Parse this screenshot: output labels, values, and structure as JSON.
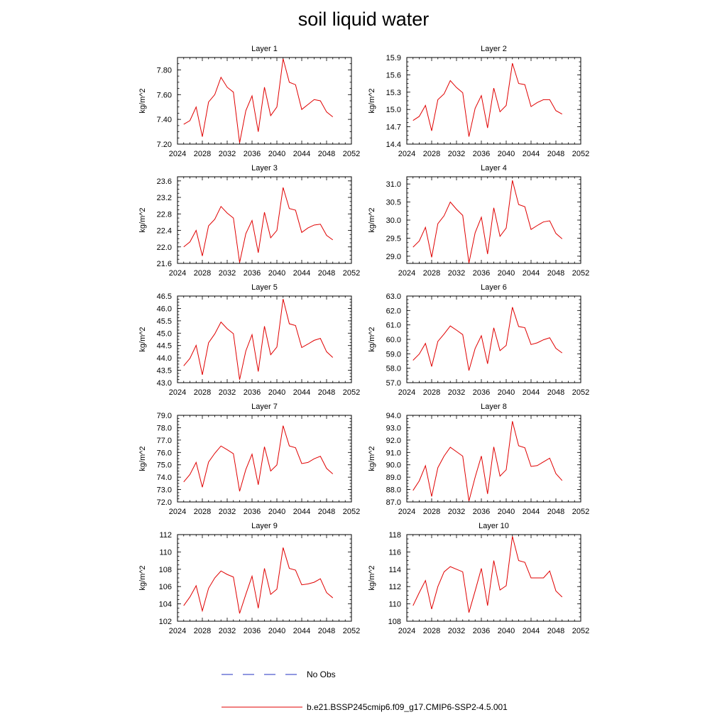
{
  "title": "soil liquid water",
  "legend": {
    "obs_label": "No Obs",
    "obs_color": "#2030c0",
    "model_label": "b.e21.BSSP245cmip6.f09_g17.CMIP6-SSP2-4.5.001",
    "model_color": "#e00000"
  },
  "chart_data": [
    {
      "type": "line",
      "title": "Layer 1",
      "ylabel": "kg/m^2",
      "xlim": [
        2024,
        2052
      ],
      "xticks": [
        2024,
        2028,
        2032,
        2036,
        2040,
        2044,
        2048,
        2052
      ],
      "ylim": [
        7.2,
        7.9
      ],
      "yticks": [
        "7.20",
        "7.40",
        "7.60",
        "7.80"
      ],
      "ytick_values": [
        7.2,
        7.4,
        7.6,
        7.8
      ],
      "x": [
        2025,
        2026,
        2027,
        2028,
        2029,
        2030,
        2031,
        2032,
        2033,
        2034,
        2035,
        2036,
        2037,
        2038,
        2039,
        2040,
        2041,
        2042,
        2043,
        2044,
        2045,
        2046,
        2047,
        2048,
        2049
      ],
      "series": [
        {
          "name": "b.e21.BSSP245cmip6.f09_g17.CMIP6-SSP2-4.5.001",
          "values": [
            7.36,
            7.39,
            7.5,
            7.26,
            7.54,
            7.6,
            7.74,
            7.66,
            7.62,
            7.21,
            7.47,
            7.59,
            7.3,
            7.66,
            7.43,
            7.5,
            7.89,
            7.7,
            7.68,
            7.48,
            7.52,
            7.56,
            7.55,
            7.46,
            7.42
          ]
        }
      ]
    },
    {
      "type": "line",
      "title": "Layer 2",
      "ylabel": "kg/m^2",
      "xlim": [
        2024,
        2052
      ],
      "xticks": [
        2024,
        2028,
        2032,
        2036,
        2040,
        2044,
        2048,
        2052
      ],
      "ylim": [
        14.4,
        15.9
      ],
      "yticks": [
        "14.4",
        "14.7",
        "15.0",
        "15.3",
        "15.6",
        "15.9"
      ],
      "ytick_values": [
        14.4,
        14.7,
        15.0,
        15.3,
        15.6,
        15.9
      ],
      "x": [
        2025,
        2026,
        2027,
        2028,
        2029,
        2030,
        2031,
        2032,
        2033,
        2034,
        2035,
        2036,
        2037,
        2038,
        2039,
        2040,
        2041,
        2042,
        2043,
        2044,
        2045,
        2046,
        2047,
        2048,
        2049
      ],
      "series": [
        {
          "name": "b.e21.BSSP245cmip6.f09_g17.CMIP6-SSP2-4.5.001",
          "values": [
            14.81,
            14.88,
            15.07,
            14.63,
            15.17,
            15.27,
            15.5,
            15.38,
            15.29,
            14.53,
            15.02,
            15.24,
            14.68,
            15.37,
            14.96,
            15.07,
            15.8,
            15.45,
            15.43,
            15.05,
            15.12,
            15.17,
            15.17,
            14.98,
            14.92
          ]
        }
      ]
    },
    {
      "type": "line",
      "title": "Layer 3",
      "ylabel": "kg/m^2",
      "xlim": [
        2024,
        2052
      ],
      "xticks": [
        2024,
        2028,
        2032,
        2036,
        2040,
        2044,
        2048,
        2052
      ],
      "ylim": [
        21.6,
        23.7
      ],
      "yticks": [
        "21.6",
        "22.0",
        "22.4",
        "22.8",
        "23.2",
        "23.6"
      ],
      "ytick_values": [
        21.6,
        22.0,
        22.4,
        22.8,
        23.2,
        23.6
      ],
      "x": [
        2025,
        2026,
        2027,
        2028,
        2029,
        2030,
        2031,
        2032,
        2033,
        2034,
        2035,
        2036,
        2037,
        2038,
        2039,
        2040,
        2041,
        2042,
        2043,
        2044,
        2045,
        2046,
        2047,
        2048,
        2049
      ],
      "series": [
        {
          "name": "b.e21.BSSP245cmip6.f09_g17.CMIP6-SSP2-4.5.001",
          "values": [
            22.0,
            22.12,
            22.4,
            21.78,
            22.51,
            22.67,
            22.98,
            22.82,
            22.7,
            21.62,
            22.32,
            22.64,
            21.86,
            22.84,
            22.22,
            22.4,
            23.44,
            22.93,
            22.89,
            22.35,
            22.46,
            22.53,
            22.55,
            22.28,
            22.17
          ]
        }
      ]
    },
    {
      "type": "line",
      "title": "Layer 4",
      "ylabel": "kg/m^2",
      "xlim": [
        2024,
        2052
      ],
      "xticks": [
        2024,
        2028,
        2032,
        2036,
        2040,
        2044,
        2048,
        2052
      ],
      "ylim": [
        28.8,
        31.2
      ],
      "yticks": [
        "29.0",
        "29.5",
        "30.0",
        "30.5",
        "31.0"
      ],
      "ytick_values": [
        29.0,
        29.5,
        30.0,
        30.5,
        31.0
      ],
      "x": [
        2025,
        2026,
        2027,
        2028,
        2029,
        2030,
        2031,
        2032,
        2033,
        2034,
        2035,
        2036,
        2037,
        2038,
        2039,
        2040,
        2041,
        2042,
        2043,
        2044,
        2045,
        2046,
        2047,
        2048,
        2049
      ],
      "series": [
        {
          "name": "b.e21.BSSP245cmip6.f09_g17.CMIP6-SSP2-4.5.001",
          "values": [
            29.25,
            29.42,
            29.8,
            28.97,
            29.9,
            30.12,
            30.5,
            30.3,
            30.13,
            28.81,
            29.65,
            30.08,
            29.06,
            30.34,
            29.55,
            29.78,
            31.1,
            30.43,
            30.37,
            29.74,
            29.85,
            29.95,
            29.98,
            29.63,
            29.48
          ]
        }
      ]
    },
    {
      "type": "line",
      "title": "Layer 5",
      "ylabel": "kg/m^2",
      "xlim": [
        2024,
        2052
      ],
      "xticks": [
        2024,
        2028,
        2032,
        2036,
        2040,
        2044,
        2048,
        2052
      ],
      "ylim": [
        43.0,
        46.5
      ],
      "yticks": [
        "43.0",
        "43.5",
        "44.0",
        "44.5",
        "45.0",
        "45.5",
        "46.0",
        "46.5"
      ],
      "ytick_values": [
        43.0,
        43.5,
        44.0,
        44.5,
        45.0,
        45.5,
        46.0,
        46.5
      ],
      "x": [
        2025,
        2026,
        2027,
        2028,
        2029,
        2030,
        2031,
        2032,
        2033,
        2034,
        2035,
        2036,
        2037,
        2038,
        2039,
        2040,
        2041,
        2042,
        2043,
        2044,
        2045,
        2046,
        2047,
        2048,
        2049
      ],
      "series": [
        {
          "name": "b.e21.BSSP245cmip6.f09_g17.CMIP6-SSP2-4.5.001",
          "values": [
            43.68,
            43.98,
            44.51,
            43.32,
            44.61,
            44.97,
            45.45,
            45.18,
            44.98,
            43.12,
            44.28,
            44.94,
            43.45,
            45.28,
            44.13,
            44.44,
            46.38,
            45.38,
            45.31,
            44.42,
            44.56,
            44.71,
            44.79,
            44.25,
            44.02
          ]
        }
      ]
    },
    {
      "type": "line",
      "title": "Layer 6",
      "ylabel": "kg/m^2",
      "xlim": [
        2024,
        2052
      ],
      "xticks": [
        2024,
        2028,
        2032,
        2036,
        2040,
        2044,
        2048,
        2052
      ],
      "ylim": [
        57.0,
        63.0
      ],
      "yticks": [
        "57.0",
        "58.0",
        "59.0",
        "60.0",
        "61.0",
        "62.0",
        "63.0"
      ],
      "ytick_values": [
        57.0,
        58.0,
        59.0,
        60.0,
        61.0,
        62.0,
        63.0
      ],
      "x": [
        2025,
        2026,
        2027,
        2028,
        2029,
        2030,
        2031,
        2032,
        2033,
        2034,
        2035,
        2036,
        2037,
        2038,
        2039,
        2040,
        2041,
        2042,
        2043,
        2044,
        2045,
        2046,
        2047,
        2048,
        2049
      ],
      "series": [
        {
          "name": "b.e21.BSSP245cmip6.f09_g17.CMIP6-SSP2-4.5.001",
          "values": [
            58.55,
            58.98,
            59.72,
            58.12,
            59.86,
            60.37,
            60.93,
            60.64,
            60.33,
            57.84,
            59.37,
            60.25,
            58.31,
            60.8,
            59.22,
            59.58,
            62.23,
            60.89,
            60.81,
            59.64,
            59.76,
            59.97,
            60.11,
            59.38,
            59.06
          ]
        }
      ]
    },
    {
      "type": "line",
      "title": "Layer 7",
      "ylabel": "kg/m^2",
      "xlim": [
        2024,
        2052
      ],
      "xticks": [
        2024,
        2028,
        2032,
        2036,
        2040,
        2044,
        2048,
        2052
      ],
      "ylim": [
        72.0,
        79.0
      ],
      "yticks": [
        "72.0",
        "73.0",
        "74.0",
        "75.0",
        "76.0",
        "77.0",
        "78.0",
        "79.0"
      ],
      "ytick_values": [
        72.0,
        73.0,
        74.0,
        75.0,
        76.0,
        77.0,
        78.0,
        79.0
      ],
      "x": [
        2025,
        2026,
        2027,
        2028,
        2029,
        2030,
        2031,
        2032,
        2033,
        2034,
        2035,
        2036,
        2037,
        2038,
        2039,
        2040,
        2041,
        2042,
        2043,
        2044,
        2045,
        2046,
        2047,
        2048,
        2049
      ],
      "series": [
        {
          "name": "b.e21.BSSP245cmip6.f09_g17.CMIP6-SSP2-4.5.001",
          "values": [
            73.62,
            74.22,
            75.2,
            73.19,
            75.22,
            75.93,
            76.52,
            76.22,
            75.9,
            72.86,
            74.62,
            75.86,
            73.39,
            76.46,
            74.5,
            74.99,
            78.16,
            76.53,
            76.38,
            75.1,
            75.19,
            75.49,
            75.69,
            74.71,
            74.27
          ]
        }
      ]
    },
    {
      "type": "line",
      "title": "Layer 8",
      "ylabel": "kg/m^2",
      "xlim": [
        2024,
        2052
      ],
      "xticks": [
        2024,
        2028,
        2032,
        2036,
        2040,
        2044,
        2048,
        2052
      ],
      "ylim": [
        87.0,
        94.0
      ],
      "yticks": [
        "87.0",
        "88.0",
        "89.0",
        "90.0",
        "91.0",
        "92.0",
        "93.0",
        "94.0"
      ],
      "ytick_values": [
        87.0,
        88.0,
        89.0,
        90.0,
        91.0,
        92.0,
        93.0,
        94.0
      ],
      "x": [
        2025,
        2026,
        2027,
        2028,
        2029,
        2030,
        2031,
        2032,
        2033,
        2034,
        2035,
        2036,
        2037,
        2038,
        2039,
        2040,
        2041,
        2042,
        2043,
        2044,
        2045,
        2046,
        2047,
        2048,
        2049
      ],
      "series": [
        {
          "name": "b.e21.BSSP245cmip6.f09_g17.CMIP6-SSP2-4.5.001",
          "values": [
            87.93,
            88.7,
            89.93,
            87.44,
            89.77,
            90.71,
            91.42,
            91.06,
            90.7,
            87.07,
            89.0,
            90.71,
            87.65,
            91.45,
            89.09,
            89.6,
            93.52,
            91.54,
            91.38,
            89.87,
            89.94,
            90.24,
            90.54,
            89.29,
            88.73
          ]
        }
      ]
    },
    {
      "type": "line",
      "title": "Layer 9",
      "ylabel": "kg/m^2",
      "xlim": [
        2024,
        2052
      ],
      "xticks": [
        2024,
        2028,
        2032,
        2036,
        2040,
        2044,
        2048,
        2052
      ],
      "ylim": [
        102,
        112
      ],
      "yticks": [
        "102",
        "104",
        "106",
        "108",
        "110",
        "112"
      ],
      "ytick_values": [
        102,
        104,
        106,
        108,
        110,
        112
      ],
      "x": [
        2025,
        2026,
        2027,
        2028,
        2029,
        2030,
        2031,
        2032,
        2033,
        2034,
        2035,
        2036,
        2037,
        2038,
        2039,
        2040,
        2041,
        2042,
        2043,
        2044,
        2045,
        2046,
        2047,
        2048,
        2049
      ],
      "series": [
        {
          "name": "b.e21.BSSP245cmip6.f09_g17.CMIP6-SSP2-4.5.001",
          "values": [
            103.8,
            104.8,
            106.1,
            103.2,
            105.8,
            107.0,
            107.8,
            107.4,
            107.1,
            102.9,
            105.1,
            107.2,
            103.5,
            108.1,
            105.1,
            105.7,
            110.5,
            108.1,
            107.9,
            106.2,
            106.3,
            106.5,
            106.9,
            105.3,
            104.7
          ]
        }
      ]
    },
    {
      "type": "line",
      "title": "Layer 10",
      "ylabel": "kg/m^2",
      "xlim": [
        2024,
        2052
      ],
      "xticks": [
        2024,
        2028,
        2032,
        2036,
        2040,
        2044,
        2048,
        2052
      ],
      "ylim": [
        108,
        118
      ],
      "yticks": [
        "108",
        "110",
        "112",
        "114",
        "116",
        "118"
      ],
      "ytick_values": [
        108,
        110,
        112,
        114,
        116,
        118
      ],
      "x": [
        2025,
        2026,
        2027,
        2028,
        2029,
        2030,
        2031,
        2032,
        2033,
        2034,
        2035,
        2036,
        2037,
        2038,
        2039,
        2040,
        2041,
        2042,
        2043,
        2044,
        2045,
        2046,
        2047,
        2048,
        2049
      ],
      "series": [
        {
          "name": "b.e21.BSSP245cmip6.f09_g17.CMIP6-SSP2-4.5.001",
          "values": [
            109.8,
            111.3,
            112.7,
            109.4,
            112.0,
            113.7,
            114.3,
            114.0,
            113.7,
            109.0,
            111.5,
            114.1,
            109.8,
            115.0,
            111.6,
            112.1,
            117.8,
            115.0,
            114.8,
            113.0,
            113.0,
            113.0,
            113.8,
            111.5,
            110.8
          ]
        }
      ]
    }
  ]
}
